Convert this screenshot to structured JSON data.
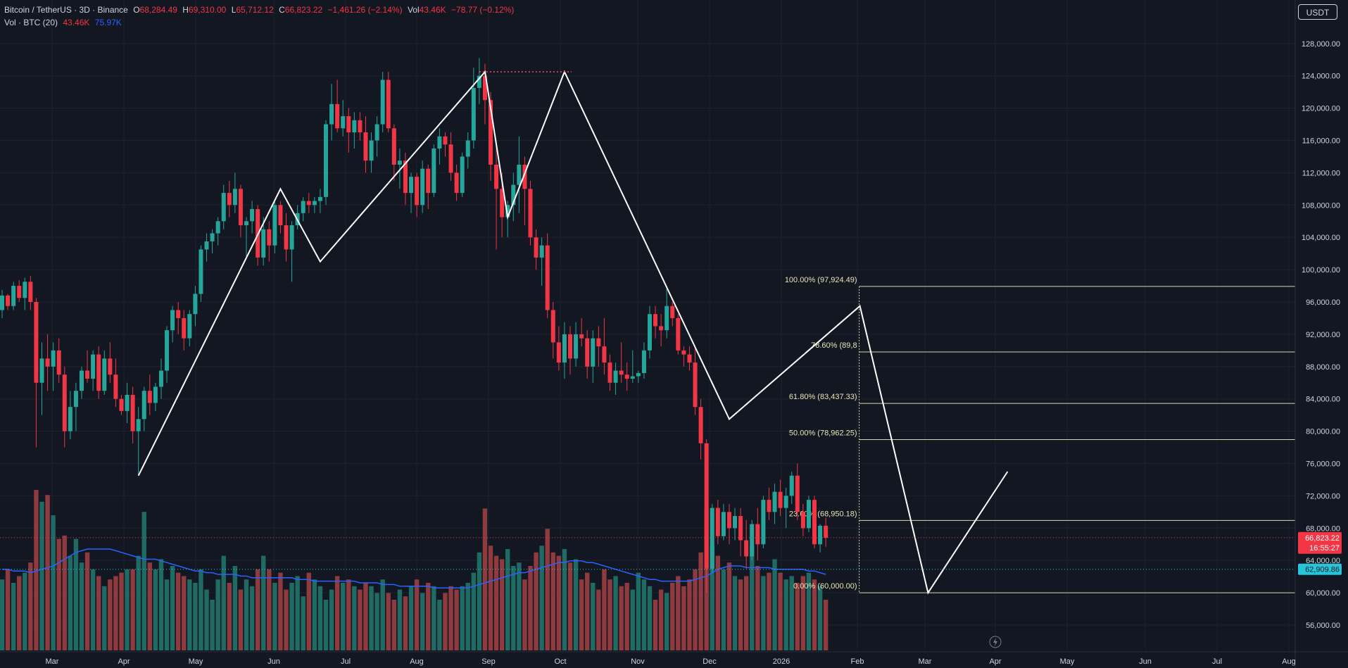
{
  "header": {
    "symbol": "Bitcoin / TetherUS · 3D · Binance",
    "open_label": "O",
    "open": "68,284.49",
    "high_label": "H",
    "high": "69,310.00",
    "low_label": "L",
    "low": "65,712.12",
    "close_label": "C",
    "close": "66,823.22",
    "change": "−1,461.26 (−2.14%)",
    "vol_label": "Vol",
    "vol": "43.46K",
    "vol_change": "−78.77 (−0.12%)",
    "indicator_label": "Vol · BTC (20)",
    "indicator_vol": "43.46K",
    "indicator_ma": "75.97K"
  },
  "currency_button": "USDT",
  "colors": {
    "bg": "#131722",
    "up": "#26a69a",
    "down": "#f23645",
    "fib": "#d8d9a8",
    "ma": "#2962ff",
    "text": "#d1d4dc"
  },
  "price_axis": {
    "ticks": [
      "128,000.00",
      "124,000.00",
      "120,000.00",
      "116,000.00",
      "112,000.00",
      "108,000.00",
      "104,000.00",
      "100,000.00",
      "96,000.00",
      "92,000.00",
      "88,000.00",
      "84,000.00",
      "80,000.00",
      "76,000.00",
      "72,000.00",
      "68,000.00",
      "64,000.00",
      "60,000.00",
      "56,000.00"
    ],
    "current_price": "66,823.22",
    "countdown": "16:55:27",
    "ma_value": "62,909.86"
  },
  "time_axis": [
    "Mar",
    "Apr",
    "May",
    "Jun",
    "Jul",
    "Aug",
    "Sep",
    "Oct",
    "Nov",
    "Dec",
    "2026",
    "Feb",
    "Mar",
    "Apr",
    "May",
    "Jun",
    "Jul",
    "Aug"
  ],
  "chart_data": {
    "type": "candlestick",
    "symbol": "BTC/USDT",
    "interval": "3D",
    "y_range": [
      53000,
      131000
    ],
    "candles_ohlc": [
      [
        95000,
        97500,
        94000,
        96800
      ],
      [
        96800,
        97000,
        95000,
        95500
      ],
      [
        95500,
        98500,
        95000,
        98000
      ],
      [
        98000,
        98700,
        96000,
        96500
      ],
      [
        96500,
        99000,
        95000,
        98500
      ],
      [
        98500,
        99200,
        95000,
        96000
      ],
      [
        96000,
        96500,
        78000,
        86000
      ],
      [
        86000,
        91000,
        82000,
        89000
      ],
      [
        89000,
        92000,
        85000,
        88000
      ],
      [
        88000,
        91000,
        85000,
        90000
      ],
      [
        90000,
        91500,
        86000,
        87000
      ],
      [
        87000,
        88000,
        78000,
        80000
      ],
      [
        80000,
        85000,
        79000,
        83000
      ],
      [
        83000,
        86000,
        80000,
        85000
      ],
      [
        85000,
        88000,
        84000,
        87500
      ],
      [
        87500,
        90000,
        86000,
        86500
      ],
      [
        86500,
        90000,
        85000,
        89500
      ],
      [
        89500,
        90500,
        84000,
        85000
      ],
      [
        85000,
        90000,
        84500,
        89000
      ],
      [
        89000,
        91000,
        86000,
        87000
      ],
      [
        87000,
        89000,
        83000,
        84000
      ],
      [
        84000,
        84500,
        82000,
        82500
      ],
      [
        82500,
        86000,
        81000,
        84500
      ],
      [
        84500,
        85500,
        78500,
        80000
      ],
      [
        80000,
        83000,
        74500,
        81500
      ],
      [
        81500,
        85500,
        80000,
        85000
      ],
      [
        85000,
        87000,
        82000,
        83500
      ],
      [
        83500,
        86000,
        82500,
        85500
      ],
      [
        85500,
        89000,
        84000,
        87500
      ],
      [
        87500,
        93000,
        86000,
        92500
      ],
      [
        92500,
        95500,
        91000,
        95000
      ],
      [
        95000,
        96000,
        92000,
        94000
      ],
      [
        94000,
        95000,
        90000,
        91500
      ],
      [
        91500,
        95000,
        90500,
        94500
      ],
      [
        94500,
        98000,
        93000,
        97000
      ],
      [
        97000,
        103000,
        96000,
        102500
      ],
      [
        102500,
        104500,
        101000,
        103500
      ],
      [
        103500,
        105000,
        102000,
        104500
      ],
      [
        104500,
        106500,
        103000,
        106000
      ],
      [
        106000,
        110500,
        105000,
        109500
      ],
      [
        109500,
        111000,
        106500,
        108000
      ],
      [
        108000,
        112000,
        107000,
        110000
      ],
      [
        110000,
        110500,
        104000,
        105500
      ],
      [
        105500,
        106500,
        101500,
        106000
      ],
      [
        106000,
        108500,
        104500,
        107500
      ],
      [
        107500,
        108000,
        100500,
        101500
      ],
      [
        101500,
        106500,
        100500,
        105000
      ],
      [
        105000,
        106000,
        101000,
        103000
      ],
      [
        103000,
        108500,
        102000,
        108000
      ],
      [
        108000,
        108500,
        104500,
        105500
      ],
      [
        105500,
        107000,
        101000,
        102500
      ],
      [
        102500,
        106000,
        98500,
        105500
      ],
      [
        105500,
        108000,
        105000,
        107000
      ],
      [
        107000,
        109000,
        106000,
        108500
      ],
      [
        108500,
        109500,
        107000,
        108000
      ],
      [
        108000,
        109000,
        107000,
        108500
      ],
      [
        108500,
        110000,
        107000,
        109000
      ],
      [
        109000,
        118500,
        108000,
        118000
      ],
      [
        118000,
        123000,
        116000,
        120500
      ],
      [
        120500,
        123500,
        117000,
        117500
      ],
      [
        117500,
        121000,
        116500,
        119000
      ],
      [
        119000,
        120000,
        114500,
        117000
      ],
      [
        117000,
        119500,
        115000,
        118500
      ],
      [
        118500,
        119500,
        116000,
        117000
      ],
      [
        117000,
        119000,
        112000,
        113500
      ],
      [
        113500,
        117000,
        112000,
        116000
      ],
      [
        116000,
        119000,
        114000,
        118000
      ],
      [
        118000,
        124500,
        117000,
        123500
      ],
      [
        123500,
        124500,
        117000,
        117500
      ],
      [
        117500,
        118000,
        111000,
        113000
      ],
      [
        113000,
        115000,
        110000,
        113500
      ],
      [
        113500,
        114500,
        108000,
        109500
      ],
      [
        109500,
        112000,
        107000,
        111500
      ],
      [
        111500,
        112000,
        106500,
        108000
      ],
      [
        108000,
        113500,
        107000,
        112500
      ],
      [
        112500,
        113000,
        107500,
        109500
      ],
      [
        109500,
        115500,
        109000,
        115000
      ],
      [
        115000,
        117500,
        113000,
        116500
      ],
      [
        116500,
        117000,
        114000,
        115500
      ],
      [
        115500,
        117000,
        111000,
        112000
      ],
      [
        112000,
        113000,
        108500,
        109500
      ],
      [
        109500,
        114500,
        109000,
        114000
      ],
      [
        114000,
        117000,
        112500,
        116000
      ],
      [
        116000,
        125000,
        115000,
        122500
      ],
      [
        122500,
        126200,
        120500,
        124000
      ],
      [
        124000,
        125500,
        118000,
        121000
      ],
      [
        121000,
        122000,
        111000,
        113000
      ],
      [
        113000,
        116000,
        102500,
        110000
      ],
      [
        110000,
        112000,
        104000,
        106500
      ],
      [
        106500,
        108500,
        104000,
        108000
      ],
      [
        108000,
        112000,
        106000,
        110500
      ],
      [
        110500,
        116500,
        107000,
        113000
      ],
      [
        113000,
        114000,
        105500,
        110000
      ],
      [
        110000,
        111000,
        103000,
        104000
      ],
      [
        104000,
        105000,
        100000,
        101500
      ],
      [
        101500,
        104000,
        98000,
        103000
      ],
      [
        103000,
        104500,
        94000,
        95000
      ],
      [
        95000,
        96000,
        89000,
        91000
      ],
      [
        91000,
        93000,
        87500,
        88500
      ],
      [
        88500,
        93500,
        86500,
        92000
      ],
      [
        92000,
        93000,
        87000,
        89000
      ],
      [
        89000,
        93500,
        88000,
        92000
      ],
      [
        92000,
        94000,
        90500,
        91500
      ],
      [
        91500,
        92500,
        86500,
        88000
      ],
      [
        88000,
        92500,
        86000,
        91500
      ],
      [
        91500,
        93000,
        88000,
        90500
      ],
      [
        90500,
        94000,
        87000,
        88500
      ],
      [
        88500,
        89500,
        85000,
        86000
      ],
      [
        86000,
        88500,
        84500,
        87500
      ],
      [
        87500,
        91000,
        86000,
        87000
      ],
      [
        87000,
        88500,
        85000,
        86500
      ],
      [
        86500,
        90000,
        86000,
        86800
      ],
      [
        86800,
        87500,
        86000,
        87200
      ],
      [
        87200,
        91000,
        86500,
        90000
      ],
      [
        90000,
        95500,
        89000,
        94500
      ],
      [
        94500,
        95500,
        91500,
        93000
      ],
      [
        93000,
        94500,
        90500,
        92500
      ],
      [
        92500,
        97900,
        91500,
        95500
      ],
      [
        95500,
        96000,
        93000,
        94000
      ],
      [
        94000,
        94500,
        89500,
        90000
      ],
      [
        90000,
        90500,
        88000,
        89500
      ],
      [
        89500,
        90500,
        87500,
        88500
      ],
      [
        88500,
        90500,
        82000,
        83000
      ],
      [
        83000,
        84000,
        76500,
        78500
      ],
      [
        78500,
        79000,
        60000,
        63000
      ],
      [
        63000,
        71000,
        62500,
        70500
      ],
      [
        70500,
        71500,
        66000,
        67000
      ],
      [
        67000,
        71000,
        66500,
        70000
      ],
      [
        70000,
        71000,
        66000,
        68000
      ],
      [
        68000,
        70500,
        66500,
        69500
      ],
      [
        69500,
        70500,
        64500,
        66500
      ],
      [
        66500,
        69000,
        63000,
        64500
      ],
      [
        64500,
        69000,
        64000,
        68500
      ],
      [
        68500,
        70500,
        64000,
        66000
      ],
      [
        66000,
        72000,
        65500,
        71500
      ],
      [
        71500,
        73000,
        69000,
        70000
      ],
      [
        70000,
        73500,
        68500,
        72500
      ],
      [
        72500,
        74000,
        69500,
        70500
      ],
      [
        70500,
        73000,
        68000,
        72000
      ],
      [
        72000,
        75000,
        71000,
        74500
      ],
      [
        74500,
        76000,
        69000,
        70000
      ],
      [
        70000,
        71000,
        67000,
        68000
      ],
      [
        68000,
        72000,
        67500,
        71500
      ],
      [
        71500,
        72000,
        65500,
        66000
      ],
      [
        66000,
        68500,
        65000,
        68300
      ],
      [
        68300,
        69300,
        65700,
        66800
      ]
    ],
    "volume": [
      42,
      48,
      40,
      44,
      46,
      52,
      95,
      88,
      92,
      80,
      66,
      68,
      56,
      66,
      52,
      58,
      48,
      44,
      38,
      42,
      44,
      46,
      48,
      48,
      56,
      82,
      52,
      48,
      54,
      42,
      50,
      46,
      44,
      42,
      40,
      48,
      36,
      30,
      42,
      56,
      40,
      50,
      36,
      42,
      38,
      48,
      56,
      48,
      40,
      46,
      36,
      40,
      44,
      32,
      46,
      42,
      38,
      30,
      36,
      44,
      40,
      42,
      38,
      36,
      40,
      38,
      34,
      42,
      34,
      30,
      36,
      32,
      38,
      42,
      34,
      40,
      38,
      30,
      34,
      38,
      36,
      38,
      40,
      46,
      58,
      84,
      62,
      56,
      54,
      60,
      50,
      52,
      42,
      50,
      58,
      62,
      72,
      58,
      56,
      60,
      52,
      54,
      42,
      46,
      40,
      36,
      48,
      42,
      44,
      38,
      40,
      36,
      46,
      42,
      38,
      30,
      36,
      34,
      40,
      44,
      38,
      42,
      48,
      58,
      84,
      62,
      56,
      48,
      52,
      44,
      42,
      44,
      62,
      50,
      44,
      46,
      54,
      46,
      42,
      44,
      40,
      44,
      46,
      42,
      38,
      30
    ],
    "volume_ma_20": [
      48,
      48,
      47,
      47,
      47,
      46,
      47,
      48,
      49,
      50,
      52,
      54,
      56,
      58,
      59,
      60,
      60,
      60,
      60,
      60,
      59,
      58,
      57,
      56,
      55,
      54,
      54,
      54,
      53,
      52,
      51,
      50,
      49,
      48,
      47,
      47,
      46,
      46,
      45,
      45,
      45,
      45,
      44,
      44,
      43,
      43,
      43,
      43,
      43,
      43,
      43,
      43,
      42,
      42,
      42,
      41,
      41,
      41,
      41,
      41,
      41,
      41,
      41,
      40,
      40,
      40,
      40,
      39,
      39,
      39,
      38,
      38,
      38,
      38,
      38,
      38,
      37,
      37,
      37,
      37,
      37,
      37,
      37,
      38,
      39,
      40,
      41,
      42,
      43,
      44,
      45,
      46,
      46,
      47,
      48,
      49,
      50,
      51,
      52,
      52,
      53,
      53,
      53,
      52,
      52,
      51,
      50,
      49,
      48,
      47,
      46,
      45,
      44,
      43,
      42,
      42,
      41,
      41,
      41,
      41,
      41,
      41,
      42,
      43,
      44,
      46,
      48,
      49,
      50,
      50,
      50,
      49,
      49,
      49,
      49,
      49,
      48,
      48,
      48,
      48,
      48,
      48,
      47,
      47,
      46,
      45
    ],
    "zigzag_points": [
      [
        24,
        74500
      ],
      [
        49,
        110000
      ],
      [
        56,
        101000
      ],
      [
        85,
        124500
      ],
      [
        89,
        106500
      ],
      [
        99,
        124500
      ],
      [
        128,
        81500
      ],
      [
        151,
        95500
      ],
      [
        163,
        60000
      ],
      [
        177,
        75000
      ]
    ],
    "top_marker": {
      "from_candle": 84,
      "to_candle": 99,
      "price": 124500
    },
    "fibonacci": {
      "from_price": 60000.0,
      "to_price": 97924.49,
      "levels": [
        {
          "label": "100.00% (97,924.49)",
          "price": 97924.49
        },
        {
          "label": "78.60% (89,8",
          "price": 89810
        },
        {
          "label": "61.80% (83,437.33)",
          "price": 83437.33
        },
        {
          "label": "50.00% (78,962.25)",
          "price": 78962.25
        },
        {
          "label": "23.60% (68,950.18)",
          "price": 68950.18
        },
        {
          "label": "0.00% (60,000.00)",
          "price": 60000.0
        }
      ]
    },
    "current_price": 66823.22,
    "ma_price_level": 62909.86
  }
}
